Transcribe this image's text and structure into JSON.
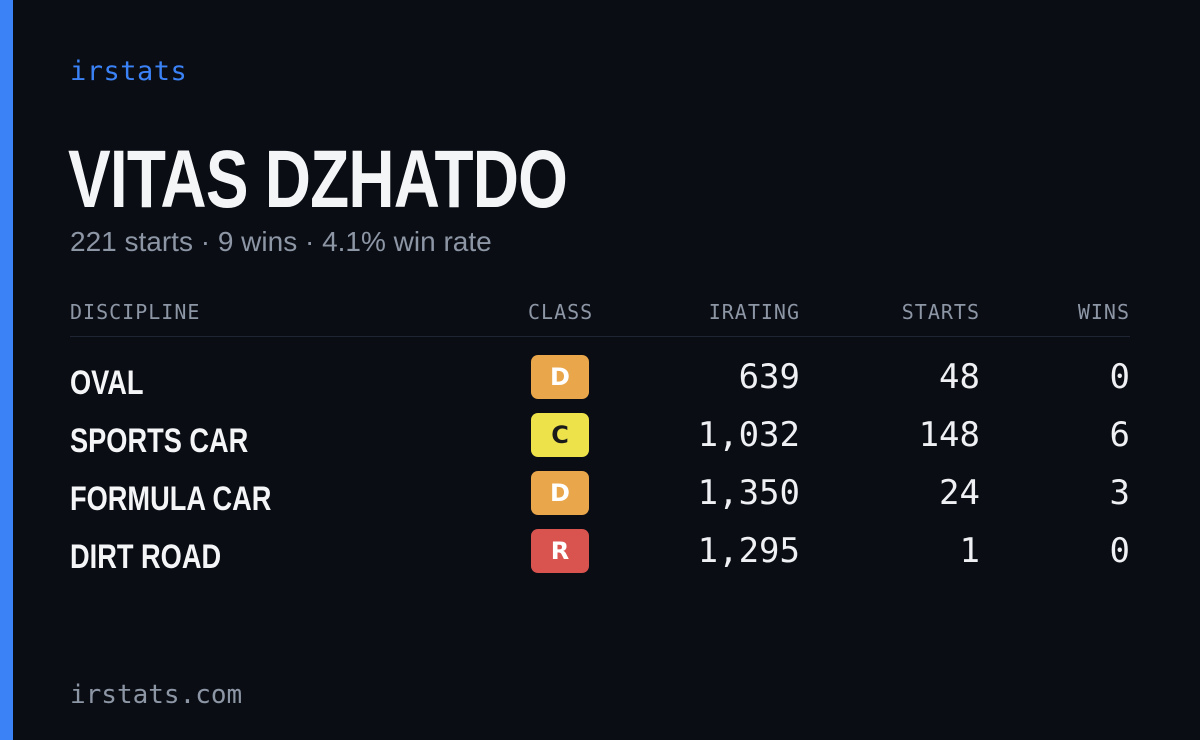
{
  "colors": {
    "background": "#0a0d14",
    "accent": "#3b82f6",
    "text_primary": "#f4f5f7",
    "text_muted": "#8d96a5",
    "class_D": "#e9a64b",
    "class_C": "#ede24a",
    "class_R": "#d9534f"
  },
  "brand": "irstats",
  "driver": {
    "name": "VITAS DZHATDO",
    "summary": "221 starts · 9 wins · 4.1% win rate"
  },
  "table": {
    "headers": {
      "discipline": "DISCIPLINE",
      "class": "CLASS",
      "irating": "IRATING",
      "starts": "STARTS",
      "wins": "WINS"
    },
    "rows": [
      {
        "discipline": "OVAL",
        "class": "D",
        "class_color": "#e9a64b",
        "class_text_color": "#ffffff",
        "irating": "639",
        "starts": "48",
        "wins": "0"
      },
      {
        "discipline": "SPORTS CAR",
        "class": "C",
        "class_color": "#ede24a",
        "class_text_color": "#1a1a1a",
        "irating": "1,032",
        "starts": "148",
        "wins": "6"
      },
      {
        "discipline": "FORMULA CAR",
        "class": "D",
        "class_color": "#e9a64b",
        "class_text_color": "#ffffff",
        "irating": "1,350",
        "starts": "24",
        "wins": "3"
      },
      {
        "discipline": "DIRT ROAD",
        "class": "R",
        "class_color": "#d9534f",
        "class_text_color": "#ffffff",
        "irating": "1,295",
        "starts": "1",
        "wins": "0"
      }
    ]
  },
  "footer": "irstats.com"
}
